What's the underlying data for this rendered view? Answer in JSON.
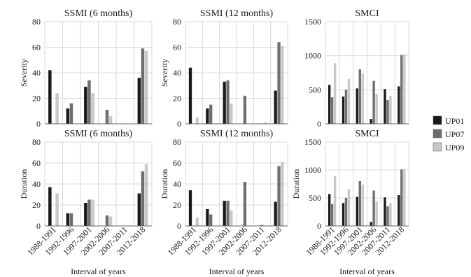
{
  "legend": {
    "position": "right",
    "entries": [
      {
        "name": "UP01",
        "color": "#1a1a1a"
      },
      {
        "name": "UP07",
        "color": "#6e6e6e"
      },
      {
        "name": "UP09",
        "color": "#c8c8c8"
      }
    ]
  },
  "chart_data": [
    {
      "type": "bar",
      "title": "SSMI (6 months)",
      "ylabel": "Severity",
      "xlabel": "",
      "ylim": [
        0,
        80
      ],
      "yticks": [
        0,
        20,
        40,
        60,
        80
      ],
      "grid": true,
      "show_xtick_labels": false,
      "categories": [
        "1988-1991",
        "1992-1996",
        "1997-2001",
        "2002-2006",
        "2007-2011",
        "2012-2018"
      ],
      "series": [
        {
          "name": "UP01",
          "values": [
            42,
            12,
            29,
            0,
            0,
            36
          ]
        },
        {
          "name": "UP07",
          "values": [
            0,
            16,
            34,
            11,
            0,
            59
          ]
        },
        {
          "name": "UP09",
          "values": [
            24,
            0,
            24,
            6,
            0,
            57
          ]
        }
      ]
    },
    {
      "type": "bar",
      "title": "SSMI (12 months)",
      "ylabel": "Severity",
      "xlabel": "",
      "ylim": [
        0,
        80
      ],
      "yticks": [
        0,
        20,
        40,
        60,
        80
      ],
      "grid": true,
      "show_xtick_labels": false,
      "categories": [
        "1988-1991",
        "1992-1996",
        "1997-2001",
        "2002-2006",
        "2007-2011",
        "2012-2018"
      ],
      "series": [
        {
          "name": "UP01",
          "values": [
            44,
            12,
            33,
            0,
            0,
            26
          ]
        },
        {
          "name": "UP07",
          "values": [
            0,
            15,
            34,
            22,
            0,
            64
          ]
        },
        {
          "name": "UP09",
          "values": [
            5,
            0,
            16,
            0,
            1,
            61
          ]
        }
      ]
    },
    {
      "type": "bar",
      "title": "SMCI",
      "ylabel": "",
      "xlabel": "",
      "ylim": [
        0,
        1500
      ],
      "yticks": [
        0,
        500,
        1000,
        1500
      ],
      "grid": true,
      "show_xtick_labels": false,
      "categories": [
        "1988-1991",
        "1992-1996",
        "1997-2001",
        "2002-2006",
        "2007-2011",
        "2012-2018"
      ],
      "series": [
        {
          "name": "UP01",
          "values": [
            570,
            400,
            520,
            70,
            510,
            550
          ]
        },
        {
          "name": "UP07",
          "values": [
            390,
            500,
            800,
            630,
            350,
            1010
          ]
        },
        {
          "name": "UP09",
          "values": [
            890,
            660,
            740,
            440,
            410,
            1020
          ]
        }
      ]
    },
    {
      "type": "bar",
      "title": "SSMI (6 months)",
      "ylabel": "Duration",
      "xlabel": "Interval of years",
      "ylim": [
        0,
        80
      ],
      "yticks": [
        0,
        20,
        40,
        60,
        80
      ],
      "grid": true,
      "show_xtick_labels": true,
      "categories": [
        "1988-1991",
        "1992-1996",
        "1997-2001",
        "2002-2006",
        "2007-2011",
        "2012-2018"
      ],
      "series": [
        {
          "name": "UP01",
          "values": [
            37,
            12,
            22,
            0,
            0,
            31
          ]
        },
        {
          "name": "UP07",
          "values": [
            0,
            12,
            25,
            10,
            0,
            52
          ]
        },
        {
          "name": "UP09",
          "values": [
            31,
            0,
            25,
            9,
            0,
            59
          ]
        }
      ]
    },
    {
      "type": "bar",
      "title": "SSMI (12 months)",
      "ylabel": "Duration",
      "xlabel": "Interval of years",
      "ylim": [
        0,
        80
      ],
      "yticks": [
        0,
        20,
        40,
        60,
        80
      ],
      "grid": true,
      "show_xtick_labels": true,
      "categories": [
        "1988-1991",
        "1992-1996",
        "1997-2001",
        "2002-2006",
        "2007-2011",
        "2012-2018"
      ],
      "series": [
        {
          "name": "UP01",
          "values": [
            34,
            16,
            24,
            0,
            0,
            23
          ]
        },
        {
          "name": "UP07",
          "values": [
            0,
            11,
            24,
            42,
            1,
            57
          ]
        },
        {
          "name": "UP09",
          "values": [
            8,
            0,
            15,
            0,
            0,
            61
          ]
        }
      ]
    },
    {
      "type": "bar",
      "title": "SMCI",
      "ylabel": "Duration",
      "xlabel": "Interval of years",
      "ylim": [
        0,
        1500
      ],
      "yticks": [
        0,
        500,
        1000,
        1500
      ],
      "grid": true,
      "show_xtick_labels": true,
      "categories": [
        "1988-1991",
        "1992-1996",
        "1997-2001",
        "2002-2006",
        "2007-2011",
        "2012-2018"
      ],
      "series": [
        {
          "name": "UP01",
          "values": [
            570,
            410,
            520,
            70,
            510,
            550
          ]
        },
        {
          "name": "UP07",
          "values": [
            390,
            500,
            800,
            630,
            350,
            1010
          ]
        },
        {
          "name": "UP09",
          "values": [
            890,
            660,
            740,
            440,
            410,
            1020
          ]
        }
      ]
    }
  ]
}
